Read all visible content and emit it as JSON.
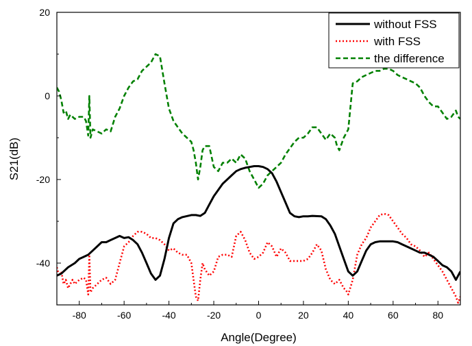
{
  "chart_data": {
    "type": "line",
    "title": "",
    "xlabel": "Angle(Degree)",
    "ylabel": "S21(dB)",
    "xlim": [
      -90,
      90
    ],
    "ylim": [
      -50,
      20
    ],
    "xticks": [
      -80,
      -60,
      -40,
      -20,
      0,
      20,
      40,
      60,
      80
    ],
    "yticks": [
      -40,
      -20,
      0,
      20
    ],
    "grid": false,
    "legend_position": "top-right",
    "series": [
      {
        "name": "without FSS",
        "color": "#000000",
        "dash": "solid",
        "x": [
          -90,
          -88,
          -85,
          -82,
          -80,
          -78,
          -76,
          -74,
          -72,
          -70,
          -68,
          -66,
          -64,
          -62,
          -60,
          -58,
          -56,
          -54,
          -52,
          -50,
          -48,
          -46,
          -44,
          -42,
          -40,
          -38,
          -36,
          -34,
          -30,
          -28,
          -26,
          -24,
          -22,
          -20,
          -18,
          -16,
          -14,
          -12,
          -10,
          -8,
          -6,
          -4,
          -2,
          0,
          2,
          4,
          6,
          8,
          10,
          12,
          14,
          16,
          18,
          20,
          22,
          24,
          28,
          30,
          32,
          34,
          36,
          38,
          40,
          42,
          44,
          46,
          48,
          50,
          52,
          54,
          56,
          58,
          60,
          62,
          64,
          66,
          68,
          70,
          72,
          74,
          76,
          78,
          80,
          82,
          84,
          86,
          88,
          90
        ],
        "y": [
          -43,
          -42.5,
          -41,
          -40,
          -39,
          -38.5,
          -38,
          -37,
          -36,
          -35,
          -35,
          -34.5,
          -34,
          -33.5,
          -34,
          -33.8,
          -34.5,
          -35.5,
          -37.5,
          -40,
          -42.5,
          -44,
          -43,
          -39,
          -34,
          -30.5,
          -29.5,
          -29,
          -28.5,
          -28.5,
          -28.7,
          -28,
          -26,
          -24,
          -22.5,
          -21,
          -20,
          -19,
          -18,
          -17.5,
          -17.2,
          -17,
          -16.8,
          -16.8,
          -17,
          -17.5,
          -18.5,
          -20.5,
          -23,
          -25.5,
          -28,
          -28.8,
          -29,
          -28.8,
          -28.8,
          -28.7,
          -28.8,
          -29.5,
          -31,
          -33,
          -36,
          -39,
          -42,
          -43,
          -42,
          -39.5,
          -37,
          -35.5,
          -35,
          -34.8,
          -34.8,
          -34.8,
          -34.8,
          -35,
          -35.5,
          -36,
          -36.5,
          -37,
          -37.5,
          -37.5,
          -38,
          -38.5,
          -39.5,
          -40.5,
          -41,
          -42,
          -44,
          -42
        ]
      },
      {
        "name": "with FSS",
        "color": "#ff0000",
        "dash": "dotted",
        "x": [
          -90,
          -89,
          -88,
          -87,
          -86,
          -85,
          -84,
          -83,
          -82,
          -80,
          -78,
          -77,
          -76,
          -75.5,
          -75,
          -74,
          -72,
          -70,
          -68,
          -66,
          -64,
          -62,
          -60,
          -58,
          -56,
          -54,
          -52,
          -50,
          -48,
          -46,
          -44,
          -42,
          -40,
          -38,
          -36,
          -34,
          -32,
          -30,
          -29,
          -28,
          -27,
          -26,
          -25,
          -24,
          -22,
          -20,
          -18,
          -16,
          -14,
          -12,
          -10,
          -8,
          -6,
          -4,
          -2,
          0,
          2,
          4,
          6,
          8,
          10,
          12,
          14,
          16,
          18,
          20,
          22,
          24,
          26,
          28,
          30,
          32,
          34,
          36,
          38,
          39,
          40,
          42,
          44,
          46,
          48,
          50,
          52,
          54,
          56,
          58,
          60,
          62,
          64,
          66,
          68,
          70,
          72,
          74,
          76,
          78,
          80,
          82,
          84,
          86,
          88,
          89,
          90
        ],
        "y": [
          -41,
          -43,
          -42,
          -45,
          -44,
          -46,
          -45,
          -44,
          -45,
          -44,
          -43.5,
          -44,
          -47.5,
          -38,
          -47,
          -46,
          -45,
          -44,
          -43.5,
          -45,
          -44,
          -40,
          -36,
          -35,
          -33.5,
          -32.5,
          -32.5,
          -33,
          -34,
          -34,
          -34.5,
          -35.5,
          -37,
          -36.5,
          -37.5,
          -38,
          -38,
          -40,
          -44,
          -48,
          -49,
          -44,
          -40,
          -41.5,
          -43,
          -42,
          -38.5,
          -38,
          -38,
          -38.5,
          -33.5,
          -32.5,
          -34.5,
          -37.5,
          -39,
          -38.5,
          -37.5,
          -35,
          -36,
          -38.5,
          -36.5,
          -37.5,
          -39.5,
          -39.5,
          -39.5,
          -39.5,
          -39,
          -37.5,
          -35.5,
          -37,
          -41.5,
          -44,
          -45,
          -44,
          -46,
          -46.5,
          -47.5,
          -44,
          -38,
          -35.5,
          -34,
          -31.5,
          -30,
          -28.5,
          -28.2,
          -28.5,
          -30,
          -31.5,
          -33,
          -34,
          -35.5,
          -36,
          -37,
          -38.5,
          -37.5,
          -39,
          -40.5,
          -42,
          -44,
          -46,
          -48,
          -49.5,
          -48
        ]
      },
      {
        "name": "the difference",
        "color": "#008000",
        "dash": "dashed",
        "x": [
          -90,
          -89,
          -88,
          -87,
          -86,
          -85,
          -84,
          -83,
          -82,
          -80,
          -78,
          -77,
          -76,
          -75.5,
          -75,
          -74,
          -72,
          -70,
          -68,
          -66,
          -64,
          -62,
          -60,
          -58,
          -56,
          -54,
          -52,
          -50,
          -48,
          -46,
          -44,
          -42,
          -40,
          -38,
          -36,
          -34,
          -32,
          -30,
          -29,
          -28,
          -27,
          -26,
          -25,
          -24,
          -22,
          -20,
          -18,
          -16,
          -14,
          -12,
          -10,
          -8,
          -6,
          -4,
          -2,
          0,
          2,
          4,
          6,
          8,
          10,
          12,
          14,
          16,
          18,
          20,
          22,
          24,
          26,
          28,
          30,
          32,
          34,
          35,
          36,
          38,
          40,
          42,
          44,
          46,
          48,
          50,
          52,
          54,
          56,
          58,
          60,
          62,
          64,
          66,
          68,
          70,
          72,
          74,
          76,
          78,
          80,
          82,
          84,
          86,
          88,
          89,
          90
        ],
        "y": [
          2,
          1,
          -1,
          -4,
          -3.5,
          -5.5,
          -4.5,
          -5,
          -5.5,
          -5,
          -5,
          -6,
          -9.5,
          0,
          -10,
          -8,
          -8.5,
          -9,
          -8,
          -8.5,
          -5,
          -3,
          0,
          2,
          3.5,
          4,
          6,
          7,
          8,
          10,
          9.5,
          3,
          -3,
          -6,
          -7.5,
          -9,
          -10,
          -11,
          -13,
          -16,
          -20,
          -17,
          -13,
          -12,
          -12,
          -17,
          -18,
          -16,
          -16,
          -15,
          -16,
          -14,
          -15,
          -18,
          -20,
          -22,
          -21,
          -19,
          -18,
          -17,
          -16,
          -14,
          -12.5,
          -11,
          -10,
          -10,
          -9,
          -7.5,
          -7.5,
          -9,
          -10.5,
          -9,
          -10,
          -12,
          -13,
          -10,
          -8,
          3,
          3.5,
          4.5,
          5,
          5.5,
          6,
          6,
          6.5,
          6.5,
          6,
          5,
          4.5,
          4,
          3.5,
          3,
          2,
          0,
          -1.5,
          -2.5,
          -2.5,
          -4,
          -5.5,
          -5,
          -3.5,
          -5,
          -5.5
        ]
      }
    ]
  }
}
